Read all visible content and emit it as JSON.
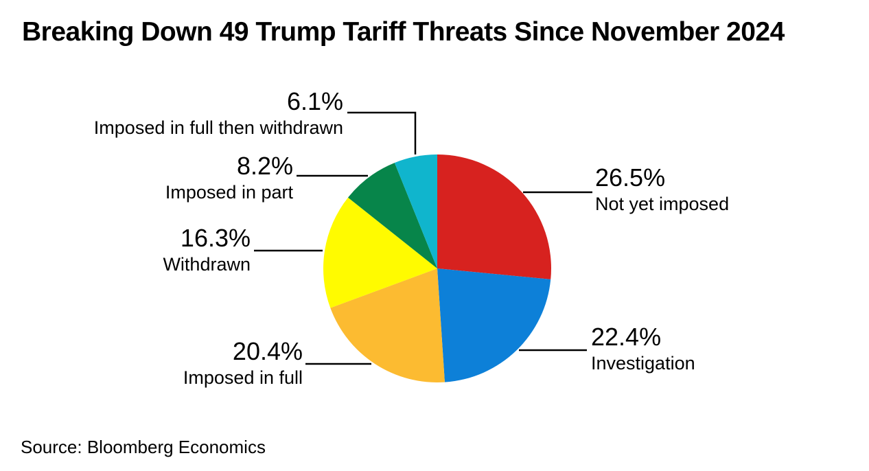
{
  "title": "Breaking Down 49 Trump Tariff Threats Since November 2024",
  "source": "Source: Bloomberg Economics",
  "chart_data": {
    "type": "pie",
    "title": "Breaking Down 49 Trump Tariff Threats Since November 2024",
    "unit": "%",
    "total_referenced_in_title": 49,
    "start_angle_deg": 0,
    "direction": "clockwise",
    "legend_position": "callout-labels-with-leader-lines",
    "slices": [
      {
        "label": "Not yet imposed",
        "value": 26.5,
        "pct_label": "26.5%",
        "color": "#d7221f"
      },
      {
        "label": "Investigation",
        "value": 22.4,
        "pct_label": "22.4%",
        "color": "#0d80d8"
      },
      {
        "label": "Imposed in full",
        "value": 20.4,
        "pct_label": "20.4%",
        "color": "#fcbb31"
      },
      {
        "label": "Withdrawn",
        "value": 16.3,
        "pct_label": "16.3%",
        "color": "#fffb00"
      },
      {
        "label": "Imposed in part",
        "value": 8.2,
        "pct_label": "8.2%",
        "color": "#07854a"
      },
      {
        "label": "Imposed in full then withdrawn",
        "value": 6.1,
        "pct_label": "6.1%",
        "color": "#10b5cd"
      }
    ],
    "source": "Source: Bloomberg Economics",
    "leader_line_color": "#000000"
  }
}
